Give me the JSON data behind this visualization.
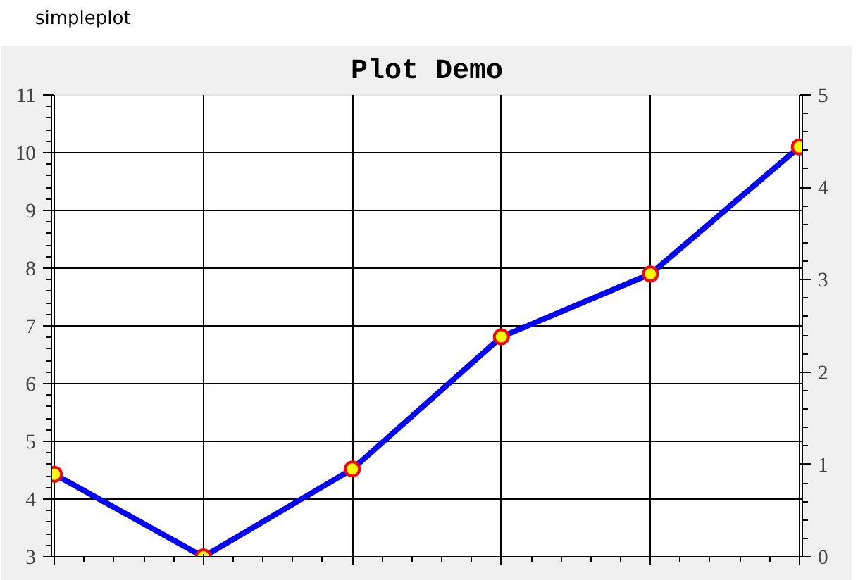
{
  "chart_data": {
    "type": "line",
    "title": "Plot Demo",
    "annotations": [
      "simpleplot"
    ],
    "categories": [
      null,
      null,
      null,
      null,
      null,
      null
    ],
    "series": [
      {
        "color": "#0000ff",
        "values": [
          4.43,
          3.0,
          4.52,
          6.81,
          7.9,
          10.1
        ]
      }
    ],
    "ylim": [
      3,
      11
    ],
    "yticks": [
      3,
      4,
      5,
      6,
      7,
      8,
      9,
      10,
      11
    ],
    "y2lim": [
      0,
      5
    ],
    "y2ticks": [
      0,
      1,
      2,
      3,
      4,
      5
    ],
    "grid": true,
    "marker": "circle",
    "line_style": "solid",
    "tick_labels": "y"
  }
}
